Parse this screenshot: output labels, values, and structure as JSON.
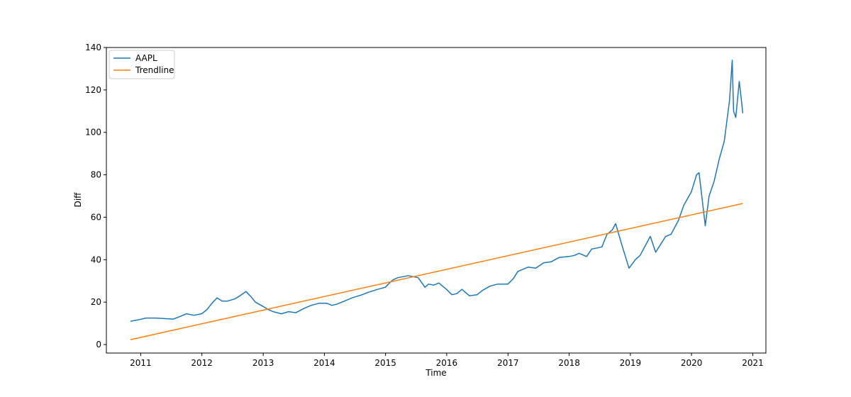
{
  "chart_data": {
    "type": "line",
    "xlabel": "Time",
    "ylabel": "Diff",
    "xlim": [
      "2010-06-10",
      "2021-03-20"
    ],
    "ylim": [
      -4,
      140
    ],
    "x_ticks": [
      "2011",
      "2012",
      "2013",
      "2014",
      "2015",
      "2016",
      "2017",
      "2018",
      "2019",
      "2020",
      "2021"
    ],
    "y_ticks": [
      0,
      20,
      40,
      60,
      80,
      100,
      120,
      140
    ],
    "grid": false,
    "legend_position": "upper-left",
    "series": [
      {
        "name": "AAPL",
        "color": "#1f77b4",
        "points": [
          [
            "2010-11-01",
            11
          ],
          [
            "2010-12-15",
            11.6
          ],
          [
            "2011-02-01",
            12.5
          ],
          [
            "2011-04-01",
            12.5
          ],
          [
            "2011-06-01",
            12.2
          ],
          [
            "2011-07-15",
            12.0
          ],
          [
            "2011-09-01",
            13.5
          ],
          [
            "2011-10-01",
            14.5
          ],
          [
            "2011-11-15",
            13.8
          ],
          [
            "2011-12-31",
            14.5
          ],
          [
            "2012-02-01",
            16.5
          ],
          [
            "2012-03-01",
            19.5
          ],
          [
            "2012-04-01",
            22.0
          ],
          [
            "2012-05-01",
            20.5
          ],
          [
            "2012-06-01",
            20.5
          ],
          [
            "2012-07-15",
            21.5
          ],
          [
            "2012-08-15",
            23.0
          ],
          [
            "2012-09-20",
            25.0
          ],
          [
            "2012-10-15",
            23.0
          ],
          [
            "2012-11-15",
            20.0
          ],
          [
            "2012-12-31",
            18.0
          ],
          [
            "2013-01-31",
            16.5
          ],
          [
            "2013-03-01",
            15.5
          ],
          [
            "2013-04-20",
            14.5
          ],
          [
            "2013-06-01",
            15.5
          ],
          [
            "2013-07-15",
            15.0
          ],
          [
            "2013-09-01",
            17.0
          ],
          [
            "2013-10-15",
            18.5
          ],
          [
            "2013-12-01",
            19.5
          ],
          [
            "2014-01-15",
            19.5
          ],
          [
            "2014-02-15",
            18.5
          ],
          [
            "2014-03-15",
            19.0
          ],
          [
            "2014-05-01",
            20.5
          ],
          [
            "2014-06-15",
            22.0
          ],
          [
            "2014-08-15",
            23.5
          ],
          [
            "2014-09-15",
            24.5
          ],
          [
            "2014-11-15",
            26.0
          ],
          [
            "2014-12-31",
            27.0
          ],
          [
            "2015-01-31",
            29.5
          ],
          [
            "2015-02-15",
            30.5
          ],
          [
            "2015-03-15",
            31.5
          ],
          [
            "2015-04-15",
            32.0
          ],
          [
            "2015-05-15",
            32.5
          ],
          [
            "2015-06-15",
            32.0
          ],
          [
            "2015-07-15",
            31.5
          ],
          [
            "2015-08-24",
            27.0
          ],
          [
            "2015-09-15",
            28.5
          ],
          [
            "2015-10-15",
            28.0
          ],
          [
            "2015-11-15",
            29.0
          ],
          [
            "2015-12-31",
            26.0
          ],
          [
            "2016-02-01",
            23.5
          ],
          [
            "2016-03-01",
            24.0
          ],
          [
            "2016-04-01",
            26.0
          ],
          [
            "2016-05-15",
            23.0
          ],
          [
            "2016-06-30",
            23.5
          ],
          [
            "2016-08-01",
            25.5
          ],
          [
            "2016-09-15",
            27.5
          ],
          [
            "2016-10-31",
            28.5
          ],
          [
            "2016-12-31",
            28.5
          ],
          [
            "2017-02-01",
            31.0
          ],
          [
            "2017-03-01",
            34.5
          ],
          [
            "2017-05-01",
            36.5
          ],
          [
            "2017-06-15",
            36.0
          ],
          [
            "2017-08-01",
            38.5
          ],
          [
            "2017-09-15",
            39.0
          ],
          [
            "2017-11-01",
            41.0
          ],
          [
            "2017-12-31",
            41.5
          ],
          [
            "2018-02-01",
            42.0
          ],
          [
            "2018-03-01",
            43.0
          ],
          [
            "2018-04-15",
            41.5
          ],
          [
            "2018-05-15",
            45.0
          ],
          [
            "2018-06-15",
            45.5
          ],
          [
            "2018-07-15",
            46.0
          ],
          [
            "2018-08-15",
            52.0
          ],
          [
            "2018-09-15",
            54.0
          ],
          [
            "2018-10-05",
            57.0
          ],
          [
            "2018-11-15",
            46.0
          ],
          [
            "2018-12-24",
            36.0
          ],
          [
            "2019-01-31",
            40.0
          ],
          [
            "2019-02-28",
            42.0
          ],
          [
            "2019-04-30",
            51.0
          ],
          [
            "2019-06-01",
            43.5
          ],
          [
            "2019-07-31",
            51.0
          ],
          [
            "2019-09-01",
            52.0
          ],
          [
            "2019-10-15",
            58.5
          ],
          [
            "2019-11-15",
            65.5
          ],
          [
            "2019-12-31",
            72.0
          ],
          [
            "2020-01-31",
            80.0
          ],
          [
            "2020-02-15",
            81.0
          ],
          [
            "2020-03-23",
            56.0
          ],
          [
            "2020-04-15",
            70.0
          ],
          [
            "2020-05-15",
            77.0
          ],
          [
            "2020-06-15",
            87.5
          ],
          [
            "2020-07-15",
            96.0
          ],
          [
            "2020-07-31",
            106.0
          ],
          [
            "2020-08-15",
            115.0
          ],
          [
            "2020-08-31",
            134.0
          ],
          [
            "2020-09-08",
            110.0
          ],
          [
            "2020-09-21",
            107.0
          ],
          [
            "2020-10-12",
            124.0
          ],
          [
            "2020-10-25",
            115.0
          ],
          [
            "2020-11-02",
            109.0
          ]
        ]
      },
      {
        "name": "Trendline",
        "color": "#ff7f0e",
        "points": [
          [
            "2010-11-01",
            2.3
          ],
          [
            "2020-11-02",
            66.5
          ]
        ]
      }
    ]
  }
}
